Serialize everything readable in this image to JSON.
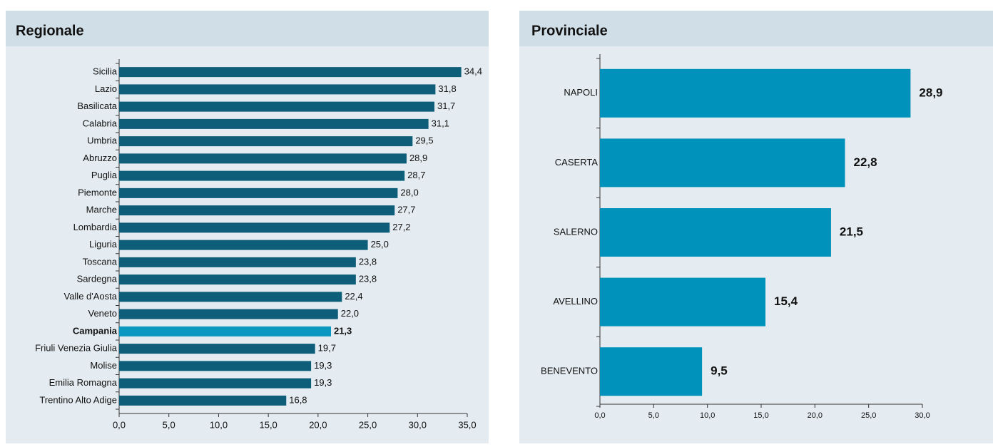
{
  "chart_data": [
    {
      "type": "barh",
      "title": "Regionale",
      "categories": [
        "Sicilia",
        "Lazio",
        "Basilicata",
        "Calabria",
        "Umbria",
        "Abruzzo",
        "Puglia",
        "Piemonte",
        "Marche",
        "Lombardia",
        "Liguria",
        "Toscana",
        "Sardegna",
        "Valle d'Aosta",
        "Veneto",
        "Campania",
        "Friuli Venezia Giulia",
        "Molise",
        "Emilia Romagna",
        "Trentino Alto Adige"
      ],
      "values": [
        34.4,
        31.8,
        31.7,
        31.1,
        29.5,
        28.9,
        28.7,
        28.0,
        27.7,
        27.2,
        25.0,
        23.8,
        23.8,
        22.4,
        22.0,
        21.3,
        19.7,
        19.3,
        19.3,
        16.8
      ],
      "value_labels": [
        "34,4",
        "31,8",
        "31,7",
        "31,1",
        "29,5",
        "28,9",
        "28,7",
        "28,0",
        "27,7",
        "27,2",
        "25,0",
        "23,8",
        "23,8",
        "22,4",
        "22,0",
        "21,3",
        "19,7",
        "19,3",
        "19,3",
        "16,8"
      ],
      "color": "#0e5e7a",
      "colors": [
        "#0e5e7a",
        "#0e5e7a",
        "#0e5e7a",
        "#0e5e7a",
        "#0e5e7a",
        "#0e5e7a",
        "#0e5e7a",
        "#0e5e7a",
        "#0e5e7a",
        "#0e5e7a",
        "#0e5e7a",
        "#0e5e7a",
        "#0e5e7a",
        "#0e5e7a",
        "#0e5e7a",
        "#0a97c0",
        "#0e5e7a",
        "#0e5e7a",
        "#0e5e7a",
        "#0e5e7a"
      ],
      "xlim": [
        0,
        35
      ],
      "xticks": [
        {
          "value": 0,
          "label": "0,0"
        },
        {
          "value": 5,
          "label": "5,0"
        },
        {
          "value": 10,
          "label": "10,0"
        },
        {
          "value": 15,
          "label": "15,0"
        },
        {
          "value": 20,
          "label": "20,0"
        },
        {
          "value": 25,
          "label": "25,0"
        },
        {
          "value": 30,
          "label": "30,0"
        },
        {
          "value": 35,
          "label": "35,0"
        }
      ]
    },
    {
      "type": "barh",
      "title": "Provinciale",
      "categories": [
        "NAPOLI",
        "CASERTA",
        "SALERNO",
        "AVELLINO",
        "BENEVENTO"
      ],
      "values": [
        28.9,
        22.8,
        21.5,
        15.4,
        9.5
      ],
      "value_labels": [
        "28,9",
        "22,8",
        "21,5",
        "15,4",
        "9,5"
      ],
      "color": "#0092bb",
      "xlim": [
        0,
        30
      ],
      "xticks": [
        {
          "value": 0,
          "label": "0,0"
        },
        {
          "value": 5,
          "label": "5,0"
        },
        {
          "value": 10,
          "label": "10,0"
        },
        {
          "value": 15,
          "label": "15,0"
        },
        {
          "value": 20,
          "label": "20,0"
        },
        {
          "value": 25,
          "label": "25,0"
        },
        {
          "value": 30,
          "label": "30,0"
        }
      ]
    }
  ]
}
